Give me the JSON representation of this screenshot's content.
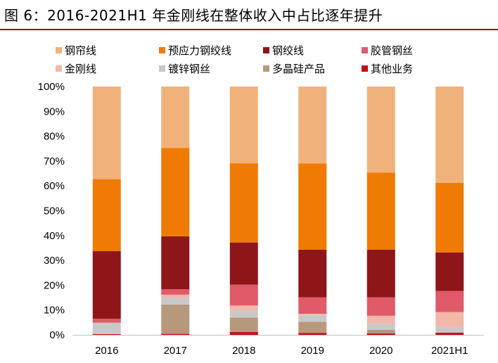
{
  "title": "图 6：2016-2021H1 年金刚线在整体收入中占比逐年提升",
  "chart_data": {
    "type": "stacked-bar",
    "categories": [
      "2016",
      "2017",
      "2018",
      "2019",
      "2020",
      "2021H1"
    ],
    "ylim": [
      0,
      100
    ],
    "yticks": [
      "0%",
      "10%",
      "20%",
      "30%",
      "40%",
      "50%",
      "60%",
      "70%",
      "80%",
      "90%",
      "100%"
    ],
    "legend": [
      {
        "name": "钢帘线",
        "color": "#f0b27a"
      },
      {
        "name": "预应力钢绞线",
        "color": "#ef7b05"
      },
      {
        "name": "钢绞线",
        "color": "#8e1618"
      },
      {
        "name": "胶管钢丝",
        "color": "#e05a6a"
      },
      {
        "name": "金刚线",
        "color": "#f2b7a8"
      },
      {
        "name": "镀锌钢丝",
        "color": "#c8c8c8"
      },
      {
        "name": "多晶硅产品",
        "color": "#b8987a"
      },
      {
        "name": "其他业务",
        "color": "#c0121c"
      }
    ],
    "series": [
      {
        "name": "其他业务",
        "color": "#c0121c",
        "values": [
          0.3,
          0.4,
          1.2,
          0.8,
          0.6,
          0.9
        ]
      },
      {
        "name": "多晶硅产品",
        "color": "#b8987a",
        "values": [
          0.0,
          11.8,
          5.8,
          4.5,
          1.4,
          0.0
        ]
      },
      {
        "name": "镀锌钢丝",
        "color": "#c8c8c8",
        "values": [
          4.6,
          2.8,
          3.0,
          2.4,
          2.5,
          2.3
        ]
      },
      {
        "name": "金刚线",
        "color": "#f2b7a8",
        "values": [
          0.0,
          1.2,
          1.8,
          0.8,
          3.2,
          6.0
        ]
      },
      {
        "name": "胶管钢丝",
        "color": "#e05a6a",
        "values": [
          1.6,
          2.2,
          8.4,
          6.6,
          7.4,
          8.5
        ]
      },
      {
        "name": "钢绞线",
        "color": "#8e1618",
        "values": [
          27.2,
          21.3,
          17.0,
          19.2,
          19.2,
          15.5
        ]
      },
      {
        "name": "预应力钢绞线",
        "color": "#ef7b05",
        "values": [
          29.0,
          35.6,
          31.9,
          34.7,
          31.0,
          28.0
        ]
      },
      {
        "name": "钢帘线",
        "color": "#f0b27a",
        "values": [
          37.3,
          24.7,
          30.9,
          31.0,
          34.7,
          38.8
        ]
      }
    ]
  }
}
